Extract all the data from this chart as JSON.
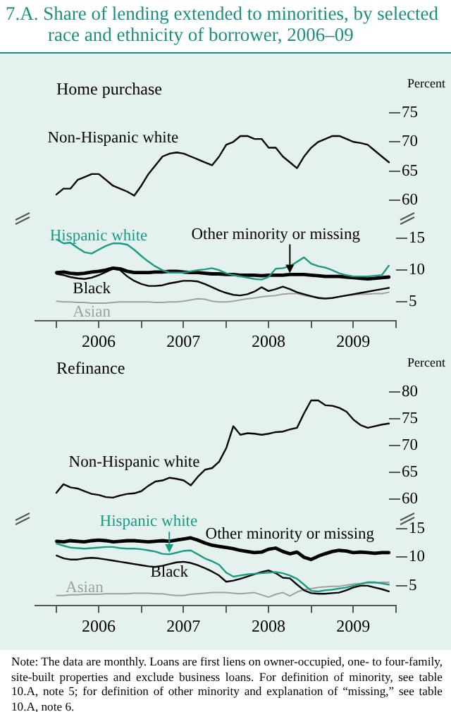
{
  "chart_data": [
    {
      "type": "line",
      "title": "7.A.   Share of lending extended to minorities, by selected race and ethnicity of borrower, 2006–09",
      "subtitle": "Home purchase",
      "ylabel": "Percent",
      "tick_labels": "y",
      "categories": [
        null,
        null,
        null,
        null,
        null,
        null,
        null,
        null,
        null,
        null,
        null,
        null,
        null,
        null,
        null,
        null,
        null,
        null,
        null,
        null,
        null,
        null,
        null,
        null,
        null,
        null,
        null,
        null,
        null,
        null,
        null,
        null,
        null,
        null,
        null,
        null,
        null,
        null,
        null,
        null,
        null,
        null,
        null,
        null,
        null,
        null,
        null,
        null
      ],
      "ylim": [
        60,
        75
      ],
      "yticks": [
        60,
        65,
        70,
        75
      ],
      "series": [
        {
          "name": "Non-Hispanic white",
          "color": "#000000",
          "values": [
            61,
            62,
            62,
            63.5,
            64,
            64.5,
            64.5,
            63.5,
            62.5,
            62,
            61.5,
            60.8,
            62.5,
            64.5,
            66,
            67.5,
            68,
            68.2,
            68,
            67.5,
            67,
            66.5,
            66,
            67.5,
            69.5,
            70,
            71,
            71,
            70.5,
            70.5,
            69,
            69,
            67.5,
            66.5,
            65.5,
            67.5,
            69,
            70,
            70.5,
            71,
            71,
            70.5,
            70,
            69.8,
            69.5,
            68.5,
            67.5,
            66.5
          ]
        }
      ]
    },
    {
      "type": "line",
      "x": [
        "2006-01",
        "2006-02",
        "2006-03",
        "2006-04",
        "2006-05",
        "2006-06",
        "2006-07",
        "2006-08",
        "2006-09",
        "2006-10",
        "2006-11",
        "2006-12",
        "2007-01",
        "2007-02",
        "2007-03",
        "2007-04",
        "2007-05",
        "2007-06",
        "2007-07",
        "2007-08",
        "2007-09",
        "2007-10",
        "2007-11",
        "2007-12",
        "2008-01",
        "2008-02",
        "2008-03",
        "2008-04",
        "2008-05",
        "2008-06",
        "2008-07",
        "2008-08",
        "2008-09",
        "2008-10",
        "2008-11",
        "2008-12",
        "2009-01",
        "2009-02",
        "2009-03",
        "2009-04",
        "2009-05",
        "2009-06",
        "2009-07",
        "2009-08",
        "2009-09",
        "2009-10",
        "2009-11",
        "2009-12"
      ],
      "xlim": [
        "2005-10",
        "2010-01"
      ],
      "xticks": [
        {
          "value": "2006-01",
          "label": null
        },
        {
          "value": "2006-07",
          "label": "2006"
        },
        {
          "value": "2007-01",
          "label": null
        },
        {
          "value": "2007-07",
          "label": "2007"
        },
        {
          "value": "2008-01",
          "label": null
        },
        {
          "value": "2008-07",
          "label": "2008"
        },
        {
          "value": "2009-01",
          "label": null
        },
        {
          "value": "2009-07",
          "label": "2009"
        },
        {
          "value": "2010-01",
          "label": null
        }
      ],
      "ylim": [
        2,
        15
      ],
      "yticks": [
        5,
        10,
        15
      ],
      "series": [
        {
          "name": "Hispanic white",
          "color": "#1a9b86",
          "values": [
            14.8,
            14.2,
            14.3,
            13.5,
            12.8,
            12.6,
            13.2,
            13.8,
            14.2,
            14.2,
            14,
            13.2,
            12.2,
            11.3,
            10.6,
            10,
            9.6,
            9.6,
            9.6,
            9.8,
            10,
            10.1,
            10.3,
            10,
            9.5,
            9.2,
            9,
            8.8,
            8.6,
            8.5,
            8.9,
            10.2,
            10.3,
            10.6,
            11.3,
            12,
            11,
            10.6,
            10.4,
            10,
            9.5,
            9.2,
            9,
            9,
            9,
            9.1,
            9.2,
            10.7
          ]
        },
        {
          "name": "Other minority or missing",
          "color": "#000000",
          "values": [
            9.6,
            9.7,
            9.5,
            9.4,
            9.5,
            9.7,
            9.8,
            10,
            10.3,
            10.2,
            9.8,
            9.6,
            9.6,
            9.6,
            9.7,
            9.7,
            9.8,
            9.8,
            9.7,
            9.6,
            9.6,
            9.5,
            9.4,
            9.4,
            9.3,
            9.3,
            9.2,
            9.2,
            9.2,
            9.1,
            9.2,
            9.2,
            9.2,
            9.3,
            9.3,
            9.3,
            9.2,
            9.1,
            9,
            9,
            9,
            8.9,
            8.8,
            8.7,
            8.6,
            8.7,
            8.8,
            8.9
          ]
        },
        {
          "name": "Black",
          "color": "#000000",
          "values": [
            9.4,
            9.2,
            8.9,
            8.7,
            8.6,
            8.8,
            9.2,
            9.7,
            10.2,
            10,
            9,
            8.3,
            7.8,
            7.5,
            7.5,
            7.6,
            7.9,
            8.1,
            8.3,
            8.3,
            8.2,
            7.8,
            7.3,
            6.8,
            6.4,
            6.1,
            6,
            6.2,
            6.6,
            7.3,
            6.7,
            7,
            7.4,
            7,
            6.5,
            6.2,
            5.9,
            5.6,
            5.5,
            5.6,
            5.8,
            6,
            6.2,
            6.4,
            6.6,
            6.8,
            7,
            7.2
          ]
        },
        {
          "name": "Asian",
          "color": "#a0a0a0",
          "values": [
            5.1,
            5,
            5,
            4.9,
            4.9,
            4.8,
            4.8,
            4.8,
            4.9,
            5,
            5,
            5,
            5,
            5,
            4.9,
            4.9,
            5,
            5,
            5.1,
            5.3,
            5.5,
            5.4,
            5.1,
            5,
            5,
            5.1,
            5.3,
            5.5,
            5.6,
            5.8,
            5.9,
            6,
            6.2,
            6.3,
            6.3,
            6,
            5.8,
            5.7,
            5.6,
            5.6,
            5.8,
            6,
            6.1,
            6.2,
            6.2,
            6.3,
            6.3,
            6.5
          ]
        }
      ]
    },
    {
      "type": "line",
      "subtitle": "Refinance",
      "ylabel": "Percent",
      "tick_labels": "y",
      "categories": [
        null,
        null,
        null,
        null,
        null,
        null,
        null,
        null,
        null,
        null,
        null,
        null,
        null,
        null,
        null,
        null,
        null,
        null,
        null,
        null,
        null,
        null,
        null,
        null,
        null,
        null,
        null,
        null,
        null,
        null,
        null,
        null,
        null,
        null,
        null,
        null,
        null,
        null,
        null,
        null,
        null,
        null,
        null,
        null,
        null,
        null,
        null,
        null
      ],
      "ylim": [
        60,
        80
      ],
      "yticks": [
        60,
        65,
        70,
        75,
        80
      ],
      "series": [
        {
          "name": "Non-Hispanic white",
          "color": "#000000",
          "values": [
            61.2,
            62.8,
            62.2,
            62,
            61.5,
            61,
            60.8,
            60.4,
            60.3,
            60.7,
            61,
            61.1,
            61.5,
            62.5,
            63.3,
            63.5,
            64,
            63.8,
            63.5,
            62.6,
            64.2,
            65.5,
            65.8,
            67,
            69.5,
            73.6,
            72,
            72.3,
            72.2,
            72,
            72.2,
            72.5,
            72.6,
            73,
            73.3,
            76,
            78.4,
            78.4,
            77.5,
            77.4,
            77,
            76.3,
            74.8,
            73.8,
            73.3,
            73.6,
            73.9,
            74.1
          ]
        }
      ]
    },
    {
      "type": "line",
      "annotations": [
        "Note: The data are monthly. Loans are first liens on owner-occupied, one- to four-family, site-built properties and exclude business loans. For definition of minority, see table 10.A, note 5; for definition of other minority and explanation of “missing,” see table 10.A, note 6."
      ],
      "x": [
        "2006-01",
        "2006-02",
        "2006-03",
        "2006-04",
        "2006-05",
        "2006-06",
        "2006-07",
        "2006-08",
        "2006-09",
        "2006-10",
        "2006-11",
        "2006-12",
        "2007-01",
        "2007-02",
        "2007-03",
        "2007-04",
        "2007-05",
        "2007-06",
        "2007-07",
        "2007-08",
        "2007-09",
        "2007-10",
        "2007-11",
        "2007-12",
        "2008-01",
        "2008-02",
        "2008-03",
        "2008-04",
        "2008-05",
        "2008-06",
        "2008-07",
        "2008-08",
        "2008-09",
        "2008-10",
        "2008-11",
        "2008-12",
        "2009-01",
        "2009-02",
        "2009-03",
        "2009-04",
        "2009-05",
        "2009-06",
        "2009-07",
        "2009-08",
        "2009-09",
        "2009-10",
        "2009-11",
        "2009-12"
      ],
      "xlim": [
        "2005-10",
        "2010-01"
      ],
      "xticks": [
        {
          "value": "2006-01",
          "label": null
        },
        {
          "value": "2006-07",
          "label": "2006"
        },
        {
          "value": "2007-01",
          "label": null
        },
        {
          "value": "2007-07",
          "label": "2007"
        },
        {
          "value": "2008-01",
          "label": null
        },
        {
          "value": "2008-07",
          "label": "2008"
        },
        {
          "value": "2009-01",
          "label": null
        },
        {
          "value": "2009-07",
          "label": "2009"
        },
        {
          "value": "2010-01",
          "label": null
        }
      ],
      "ylim": [
        1.5,
        15
      ],
      "yticks": [
        5,
        10,
        15
      ],
      "series": [
        {
          "name": "Hispanic white",
          "color": "#1a9b86",
          "values": [
            12.4,
            12,
            11.7,
            11.6,
            11.5,
            11.6,
            11.7,
            11.8,
            11.8,
            11.6,
            11.5,
            11.5,
            11.4,
            11.2,
            11,
            10.6,
            10.5,
            10.8,
            11.1,
            11.2,
            10.5,
            9.8,
            9.3,
            8.7,
            7.3,
            6.6,
            6.8,
            7,
            7.1,
            7.2,
            7.3,
            7.4,
            7.2,
            6.8,
            6.2,
            5.2,
            4.1,
            4,
            4.2,
            4.3,
            4.5,
            4.7,
            5,
            5.3,
            5.6,
            5.6,
            5.4,
            5.2
          ]
        },
        {
          "name": "Other minority or missing",
          "color": "#000000",
          "values": [
            12.8,
            12.7,
            12.9,
            12.8,
            12.7,
            12.9,
            13,
            12.9,
            12.7,
            12.8,
            12.9,
            12.9,
            12.8,
            12.7,
            12.8,
            12.9,
            12.8,
            13,
            13.2,
            13.4,
            13,
            12.5,
            12.1,
            11.9,
            11.7,
            11.5,
            11.2,
            11,
            10.8,
            10.9,
            11.4,
            11.6,
            11,
            10.6,
            10.9,
            10,
            9.6,
            10.2,
            10.6,
            11,
            11.2,
            11.1,
            10.8,
            10.9,
            10.8,
            10.7,
            10.8,
            10.8
          ]
        },
        {
          "name": "Black",
          "color": "#000000",
          "values": [
            10.3,
            9.8,
            9.6,
            9.6,
            9.8,
            9.9,
            9.8,
            9.6,
            9.4,
            9.2,
            9,
            8.8,
            8.6,
            8.4,
            8.3,
            8.5,
            8.8,
            9.1,
            9.2,
            9,
            8.6,
            8.1,
            7.5,
            6.8,
            5.7,
            5.9,
            6.2,
            6.6,
            7,
            7.4,
            7.7,
            7.2,
            6.4,
            6.3,
            5.2,
            4.2,
            3.7,
            3.6,
            3.6,
            3.7,
            3.8,
            4.2,
            4.7,
            5,
            5,
            4.7,
            4.4,
            4
          ]
        },
        {
          "name": "Asian",
          "color": "#a0a0a0",
          "values": [
            3.3,
            3.3,
            3.4,
            3.4,
            3.5,
            3.5,
            3.5,
            3.6,
            3.6,
            3.6,
            3.6,
            3.7,
            3.7,
            3.7,
            3.6,
            3.6,
            3.4,
            3.3,
            3.3,
            3.5,
            3.6,
            3.7,
            3.8,
            3.8,
            3.8,
            3.7,
            3.6,
            3.7,
            3.8,
            3.4,
            3,
            3.5,
            3.8,
            3.2,
            3.9,
            4.3,
            4.5,
            4.7,
            4.8,
            4.9,
            4.9,
            5.1,
            5.3,
            5.4,
            5.5,
            5.5,
            5.6,
            5.6
          ]
        }
      ]
    }
  ]
}
